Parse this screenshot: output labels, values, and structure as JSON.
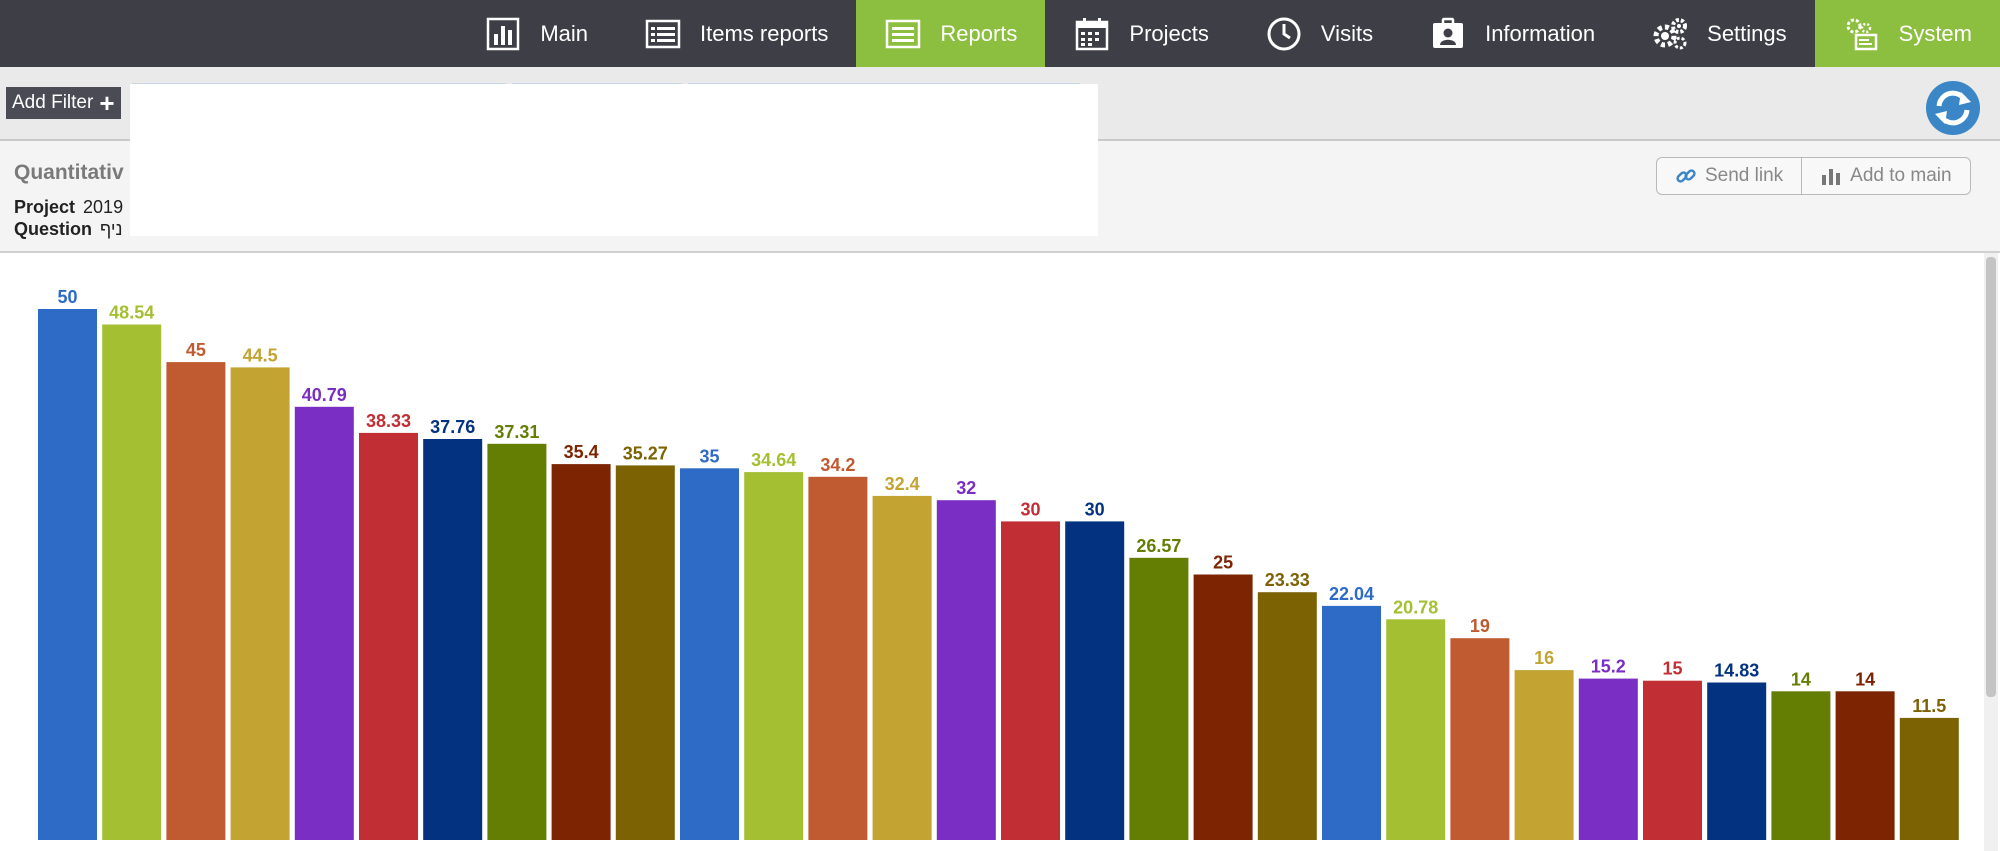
{
  "nav": {
    "items": [
      {
        "label": "Main",
        "icon": "bar-chart-icon",
        "active": false
      },
      {
        "label": "Items reports",
        "icon": "list-icon",
        "active": false
      },
      {
        "label": "Reports",
        "icon": "report-list-icon",
        "active": true
      },
      {
        "label": "Projects",
        "icon": "calendar-icon",
        "active": false
      },
      {
        "label": "Visits",
        "icon": "clock-icon",
        "active": false
      },
      {
        "label": "Information",
        "icon": "contact-card-icon",
        "active": false
      },
      {
        "label": "Settings",
        "icon": "gears-icon",
        "active": false
      },
      {
        "label": "System",
        "icon": "system-icon",
        "active": true
      }
    ]
  },
  "filter": {
    "add_label": "Add Filter"
  },
  "report": {
    "title": "Quantitativ",
    "project_label": "Project",
    "project_value": "2019",
    "question_label": "Question",
    "question_value": "ניף",
    "send_link": "Send link",
    "add_to_main": "Add to main"
  },
  "colors": {
    "nav_bg": "#3e3e46",
    "nav_active": "#8cbf3f",
    "refresh": "#3b86c6",
    "palette": [
      "#2e6bc6",
      "#a5bf33",
      "#c05b31",
      "#c3a433",
      "#7a2ec3",
      "#c12e33",
      "#033380",
      "#647e04",
      "#7d2503",
      "#7d6204"
    ]
  },
  "chart_data": {
    "type": "bar",
    "title": "",
    "xlabel": "",
    "ylabel": "",
    "ylim": [
      0,
      50
    ],
    "values": [
      50,
      48.54,
      45,
      44.5,
      40.79,
      38.33,
      37.76,
      37.31,
      35.4,
      35.27,
      35,
      34.64,
      34.2,
      32.4,
      32,
      30,
      30,
      26.57,
      25,
      23.33,
      22.04,
      20.78,
      19,
      16,
      15.2,
      15,
      14.83,
      14,
      14,
      11.5
    ],
    "labels": [
      "50",
      "48.54",
      "45",
      "44.5",
      "40.79",
      "38.33",
      "37.76",
      "37.31",
      "35.4",
      "35.27",
      "35",
      "34.64",
      "34.2",
      "32.4",
      "32",
      "30",
      "30",
      "26.57",
      "25",
      "23.33",
      "22.04",
      "20.78",
      "19",
      "16",
      "15.2",
      "15",
      "14.83",
      "14",
      "14",
      "11.5"
    ],
    "grid": false,
    "legend": "none"
  }
}
